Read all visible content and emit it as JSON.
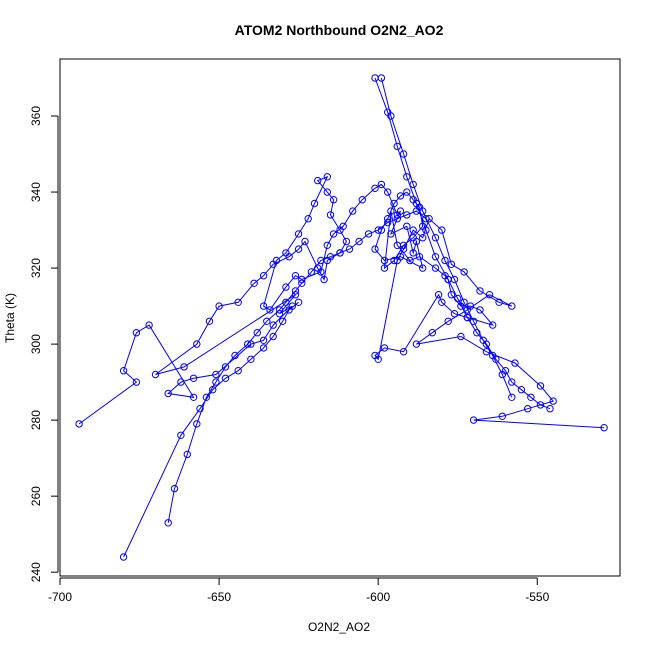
{
  "chart_data": {
    "type": "line",
    "title": "ATOM2 Northbound O2N2_AO2",
    "xlabel": "O2N2_AO2",
    "ylabel": "Theta (K)",
    "xlim": [
      -700,
      -524
    ],
    "ylim": [
      239,
      375
    ],
    "xticks": [
      -700,
      -650,
      -600,
      -550
    ],
    "yticks": [
      240,
      260,
      280,
      300,
      320,
      340,
      360
    ],
    "grid": false,
    "color": "#0000ff",
    "series": [
      {
        "x": [
          -694,
          -676,
          -680,
          -676,
          -672,
          -658,
          -666,
          -662,
          -658,
          -651,
          -640,
          -636,
          -633,
          -627,
          -631,
          -626,
          -661,
          -670,
          -657,
          -653,
          -650,
          -644,
          -639,
          -636,
          -633,
          -628,
          -625,
          -623,
          -619,
          -617,
          -616,
          -612,
          -610,
          -612,
          -615,
          -614,
          -616,
          -619,
          -616,
          -620,
          -622,
          -625,
          -629,
          -632,
          -636,
          -634,
          -629,
          -626,
          -624,
          -618,
          -616,
          -614,
          -611,
          -608,
          -605,
          -601,
          -599,
          -597,
          -594,
          -593,
          -596,
          -591,
          -589,
          -588,
          -586,
          -593,
          -598,
          -601,
          -599,
          -597,
          -595,
          -593,
          -591,
          -589,
          -587,
          -586,
          -589,
          -592,
          -595,
          -598,
          -596,
          -594,
          -590,
          -587,
          -582,
          -579,
          -578,
          -577,
          -574,
          -571,
          -568,
          -564,
          -572,
          -576,
          -580,
          -581,
          -592,
          -598,
          -601,
          -600,
          -594,
          -592,
          -589,
          -586,
          -584,
          -580,
          -577,
          -573,
          -568,
          -562,
          -558,
          -565,
          -572,
          -578,
          -583,
          -588,
          -574,
          -566,
          -557,
          -549,
          -545,
          -553,
          -561,
          -570,
          -529
        ],
        "y": [
          279,
          290,
          293,
          303,
          305,
          286,
          287,
          290,
          291,
          292,
          300,
          301,
          305,
          310,
          308,
          313,
          294,
          292,
          300,
          306,
          310,
          311,
          316,
          318,
          321,
          323,
          325,
          327,
          320,
          317,
          322,
          324,
          327,
          330,
          334,
          338,
          340,
          343,
          344,
          337,
          333,
          329,
          324,
          322,
          310,
          309,
          315,
          318,
          317,
          319,
          326,
          329,
          331,
          335,
          338,
          341,
          342,
          340,
          334,
          335,
          329,
          331,
          324,
          327,
          320,
          323,
          322,
          325,
          330,
          333,
          337,
          339,
          340,
          338,
          336,
          331,
          328,
          326,
          322,
          320,
          335,
          326,
          322,
          323,
          320,
          318,
          317,
          313,
          310,
          310,
          309,
          305,
          307,
          308,
          311,
          313,
          298,
          299,
          297,
          296,
          322,
          325,
          330,
          328,
          333,
          330,
          321,
          319,
          314,
          311,
          310,
          313,
          309,
          306,
          303,
          300,
          302,
          298,
          295,
          289,
          285,
          283,
          281,
          280,
          278
        ]
      },
      {
        "x": [
          -680,
          -662,
          -656,
          -652,
          -648,
          -644,
          -640,
          -636,
          -633,
          -630,
          -628,
          -625
        ],
        "y": [
          244,
          276,
          283,
          288,
          291,
          293,
          296,
          299,
          302,
          306,
          309,
          311
        ]
      },
      {
        "x": [
          -666,
          -664,
          -660,
          -657,
          -654,
          -651,
          -648,
          -645,
          -641,
          -638,
          -635,
          -631,
          -629,
          -626,
          -624,
          -621,
          -618,
          -615,
          -612,
          -609,
          -606,
          -603,
          -600,
          -597,
          -594,
          -591,
          -588,
          -585
        ],
        "y": [
          253,
          262,
          271,
          279,
          286,
          290,
          294,
          297,
          300,
          303,
          306,
          309,
          311,
          314,
          316,
          319,
          322,
          323,
          324,
          325,
          327,
          329,
          330,
          332,
          333,
          334,
          335,
          333
        ]
      },
      {
        "x": [
          -601,
          -597,
          -594,
          -591,
          -588,
          -585,
          -582,
          -578,
          -575,
          -572,
          -569,
          -566,
          -563,
          -560,
          -558,
          -555,
          -552,
          -549,
          -546
        ],
        "y": [
          370,
          361,
          352,
          344,
          337,
          330,
          323,
          317,
          312,
          307,
          303,
          300,
          296,
          293,
          290,
          288,
          286,
          284,
          283
        ]
      },
      {
        "x": [
          -599,
          -596,
          -592,
          -589,
          -586,
          -582,
          -579,
          -576,
          -573,
          -570,
          -567,
          -564,
          -561,
          -558
        ],
        "y": [
          370,
          360,
          350,
          342,
          335,
          328,
          322,
          317,
          311,
          306,
          301,
          297,
          292,
          286
        ]
      }
    ]
  }
}
